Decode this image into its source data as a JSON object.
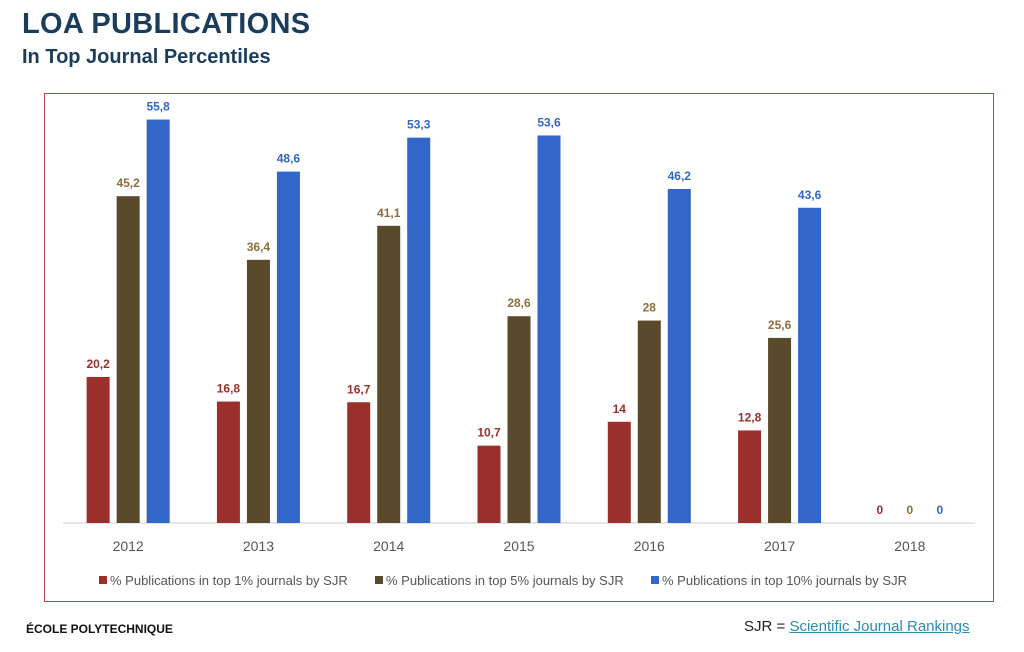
{
  "header": {
    "title": "LOA PUBLICATIONS",
    "subtitle": "In Top Journal Percentiles"
  },
  "footer": {
    "institution": "ÉCOLE POLYTECHNIQUE",
    "sjr_prefix": "SJR = ",
    "sjr_link": "Scientific Journal Rankings"
  },
  "chart_data": {
    "type": "bar",
    "title": "",
    "xlabel": "",
    "ylabel": "",
    "ylim": [
      0,
      60
    ],
    "grid": false,
    "legend_position": "bottom",
    "categories": [
      "2012",
      "2013",
      "2014",
      "2015",
      "2016",
      "2017",
      "2018"
    ],
    "series": [
      {
        "name": "% Publications in top 1% journals by SJR",
        "color": "#9b2f2b",
        "values": [
          20.2,
          16.8,
          16.7,
          10.7,
          14,
          12.8,
          0
        ],
        "labels": [
          "20,2",
          "16,8",
          "16,7",
          "10,7",
          "14",
          "12,8",
          "0"
        ]
      },
      {
        "name": "% Publications in top 5% journals by SJR",
        "color": "#594a2c",
        "values": [
          45.2,
          36.4,
          41.1,
          28.6,
          28,
          25.6,
          0
        ],
        "labels": [
          "45,2",
          "36,4",
          "41,1",
          "28,6",
          "28",
          "25,6",
          "0"
        ]
      },
      {
        "name": "% Publications in top 10% journals by SJR",
        "color": "#3266c9",
        "values": [
          55.8,
          48.6,
          53.3,
          53.6,
          46.2,
          43.6,
          0
        ],
        "labels": [
          "55,8",
          "48,6",
          "53,3",
          "53,6",
          "46,2",
          "43,6",
          "0"
        ]
      }
    ],
    "label_colors": [
      "#9b2f2b",
      "#8c6d3e",
      "#3266c9"
    ]
  }
}
